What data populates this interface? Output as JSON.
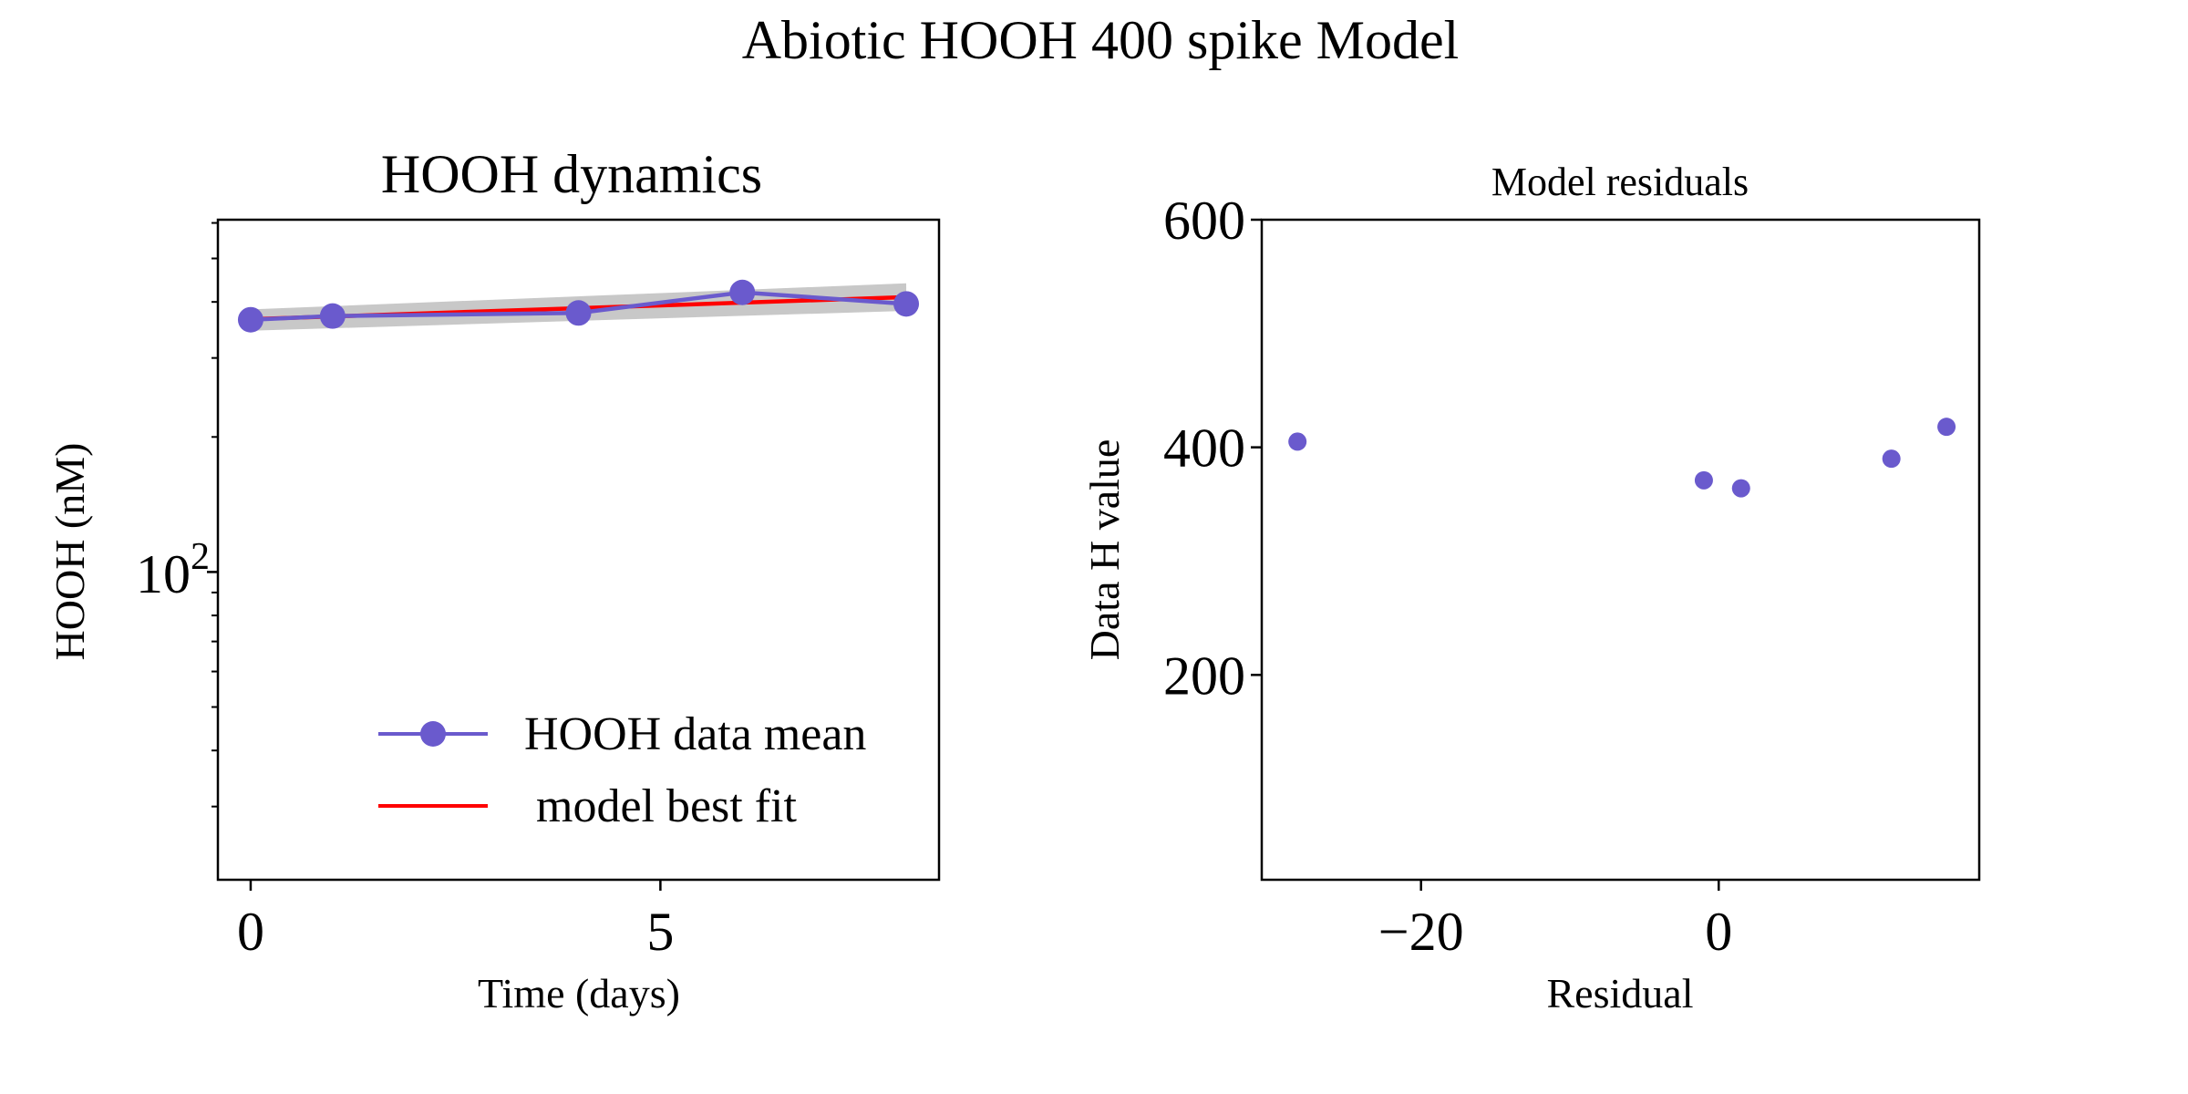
{
  "figure": {
    "suptitle": "Abiotic HOOH 400 spike Model"
  },
  "colors": {
    "data": "#6a5acd",
    "model": "#ff0000",
    "band": "#c8c8c8",
    "axes": "#000000"
  },
  "chart_data": [
    {
      "type": "line",
      "title": "HOOH dynamics",
      "xlabel": "Time (days)",
      "ylabel": "HOOH (nM)",
      "yscale": "log",
      "xlim": [
        -0.4,
        8.4
      ],
      "ylim": [
        20.6,
        610
      ],
      "xticks": [
        0,
        5
      ],
      "xtick_labels": [
        "0",
        "5"
      ],
      "yticks_major": [
        100
      ],
      "ytick_labels": [
        "10",
        "2"
      ],
      "yticks_minor": [
        30,
        40,
        50,
        60,
        70,
        80,
        90,
        200,
        300,
        400,
        500,
        600
      ],
      "legend": {
        "position": "lower-right",
        "entries": [
          "HOOH data mean",
          " model best fit"
        ]
      },
      "series": [
        {
          "name": "HOOH data mean",
          "x": [
            0,
            1,
            4,
            6,
            8
          ],
          "y": [
            365,
            372,
            378,
            420,
            396
          ],
          "marker": "circle"
        },
        {
          "name": " model best fit",
          "x": [
            0,
            8
          ],
          "y": [
            366,
            410
          ]
        }
      ],
      "band": {
        "x": [
          0,
          8
        ],
        "upper": [
          385,
          440
        ],
        "lower": [
          345,
          382
        ]
      }
    },
    {
      "type": "scatter",
      "title": "Model residuals",
      "xlabel": "Residual",
      "ylabel": "Data H value",
      "xlim": [
        -30.7,
        17.5
      ],
      "ylim": [
        20,
        600
      ],
      "xticks": [
        -20,
        0
      ],
      "xtick_labels": [
        "−20",
        "0"
      ],
      "yticks": [
        200,
        400,
        600
      ],
      "ytick_labels": [
        "200",
        "400",
        "600"
      ],
      "points": [
        {
          "x": -28.3,
          "y": 405
        },
        {
          "x": -1.0,
          "y": 371
        },
        {
          "x": 1.5,
          "y": 364
        },
        {
          "x": 11.6,
          "y": 390
        },
        {
          "x": 15.3,
          "y": 418
        }
      ]
    }
  ]
}
